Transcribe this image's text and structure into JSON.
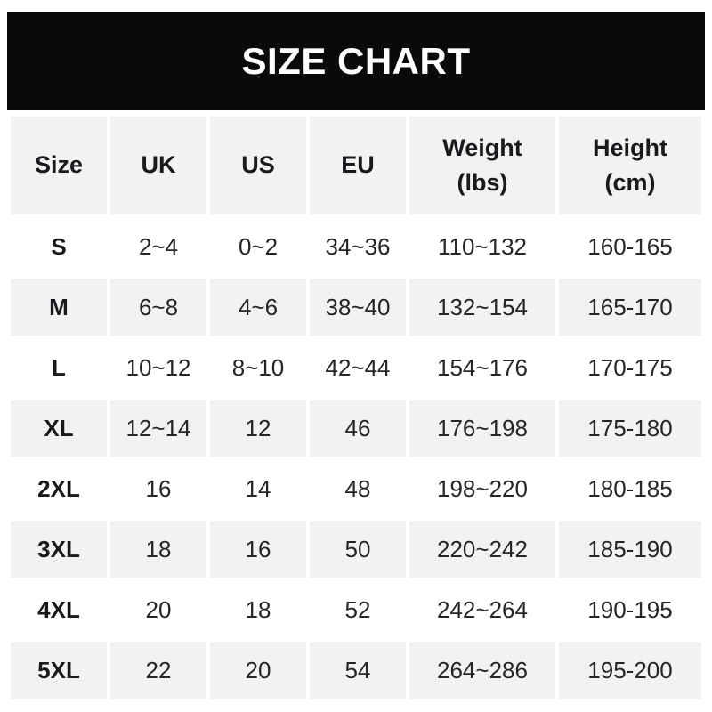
{
  "chart_data": {
    "type": "table",
    "title": "SIZE CHART",
    "columns": [
      {
        "key": "size",
        "label": "Size"
      },
      {
        "key": "uk",
        "label": "UK"
      },
      {
        "key": "us",
        "label": "US"
      },
      {
        "key": "eu",
        "label": "EU"
      },
      {
        "key": "weight",
        "label": "Weight\n(lbs)"
      },
      {
        "key": "height",
        "label": "Height\n(cm)"
      }
    ],
    "rows": [
      {
        "size": "S",
        "uk": "2~4",
        "us": "0~2",
        "eu": "34~36",
        "weight": "110~132",
        "height": "160-165"
      },
      {
        "size": "M",
        "uk": "6~8",
        "us": "4~6",
        "eu": "38~40",
        "weight": "132~154",
        "height": "165-170"
      },
      {
        "size": "L",
        "uk": "10~12",
        "us": "8~10",
        "eu": "42~44",
        "weight": "154~176",
        "height": "170-175"
      },
      {
        "size": "XL",
        "uk": "12~14",
        "us": "12",
        "eu": "46",
        "weight": "176~198",
        "height": "175-180"
      },
      {
        "size": "2XL",
        "uk": "16",
        "us": "14",
        "eu": "48",
        "weight": "198~220",
        "height": "180-185"
      },
      {
        "size": "3XL",
        "uk": "18",
        "us": "16",
        "eu": "50",
        "weight": "220~242",
        "height": "185-190"
      },
      {
        "size": "4XL",
        "uk": "20",
        "us": "18",
        "eu": "52",
        "weight": "242~264",
        "height": "190-195"
      },
      {
        "size": "5XL",
        "uk": "22",
        "us": "20",
        "eu": "54",
        "weight": "264~286",
        "height": "195-200"
      }
    ],
    "layout": {
      "banner_bg": "#0a0a0a",
      "banner_text_color": "#ffffff",
      "alt_row_bg": "#f2f2f2",
      "text_color": "#25262a",
      "row_order_shading": [
        "white",
        "gray",
        "white",
        "gray",
        "white",
        "gray",
        "white",
        "gray"
      ]
    }
  }
}
